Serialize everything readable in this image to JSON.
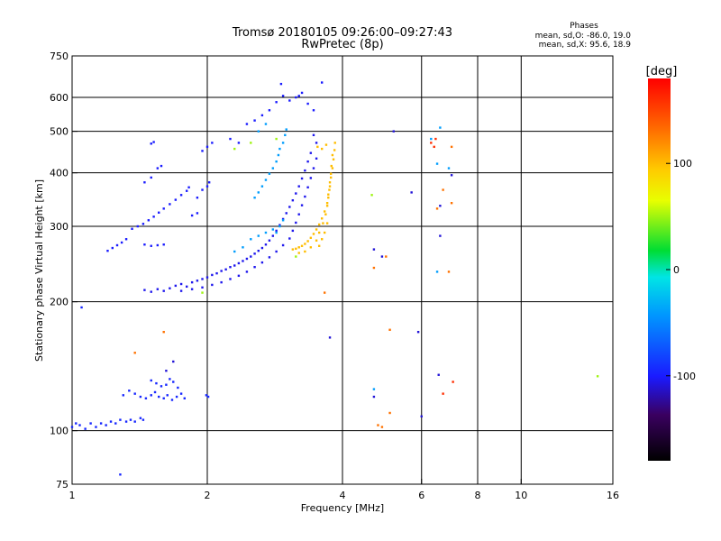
{
  "chart_data": {
    "type": "scatter",
    "title": "Tromsø 20180105 09:26:00–09:27:43",
    "subtitle": "RwPretec (8p)",
    "xlabel": "Frequency [MHz]",
    "ylabel": "Stationary phase Virtual Height [km]",
    "xscale": "log",
    "yscale": "log",
    "xlim": [
      1,
      16
    ],
    "ylim": [
      75,
      750
    ],
    "x_ticks": [
      1,
      2,
      4,
      6,
      8,
      10,
      16
    ],
    "y_ticks": [
      75,
      100,
      200,
      300,
      400,
      500,
      600,
      750
    ],
    "x_gridlines": [
      2,
      4,
      6,
      8,
      10
    ],
    "y_gridlines": [
      100,
      200,
      300,
      400,
      500,
      600
    ],
    "phases_box": {
      "heading": "Phases",
      "line1": "mean, sd,O: -86.0, 19.0",
      "line2": "mean, sd,X:  95.6, 18.9"
    },
    "colorbar": {
      "label": "[deg]",
      "range": [
        -180,
        180
      ],
      "ticks": [
        100,
        0,
        -100
      ],
      "tick_labels": [
        "100",
        "0",
        "-100"
      ]
    },
    "series": [
      {
        "name": "O-mode low (blue)",
        "phase": -95,
        "points": [
          [
            1.0,
            102
          ],
          [
            1.02,
            104
          ],
          [
            1.04,
            103
          ],
          [
            1.07,
            101
          ],
          [
            1.1,
            104
          ],
          [
            1.13,
            102
          ],
          [
            1.16,
            104
          ],
          [
            1.19,
            103
          ],
          [
            1.22,
            105
          ],
          [
            1.25,
            104
          ],
          [
            1.28,
            106
          ],
          [
            1.32,
            105
          ],
          [
            1.35,
            106
          ],
          [
            1.38,
            105
          ],
          [
            1.42,
            107
          ],
          [
            1.44,
            106
          ],
          [
            1.3,
            121
          ],
          [
            1.34,
            124
          ],
          [
            1.38,
            122
          ],
          [
            1.42,
            120
          ],
          [
            1.46,
            119
          ],
          [
            1.5,
            121
          ],
          [
            1.53,
            123
          ],
          [
            1.56,
            120
          ],
          [
            1.6,
            119
          ],
          [
            1.63,
            121
          ],
          [
            1.67,
            118
          ],
          [
            1.71,
            120
          ],
          [
            1.75,
            122
          ],
          [
            1.78,
            119
          ],
          [
            1.5,
            131
          ],
          [
            1.54,
            129
          ],
          [
            1.58,
            127
          ],
          [
            1.62,
            128
          ],
          [
            1.65,
            132
          ],
          [
            1.68,
            130
          ],
          [
            1.72,
            126
          ],
          [
            1.99,
            121
          ],
          [
            2.01,
            120
          ],
          [
            1.05,
            194
          ],
          [
            1.28,
            79
          ]
        ]
      },
      {
        "name": "O-mode trace (blue)",
        "phase": -105,
        "points": [
          [
            1.45,
            213
          ],
          [
            1.5,
            211
          ],
          [
            1.55,
            214
          ],
          [
            1.6,
            212
          ],
          [
            1.65,
            215
          ],
          [
            1.7,
            218
          ],
          [
            1.75,
            220
          ],
          [
            1.8,
            217
          ],
          [
            1.85,
            222
          ],
          [
            1.9,
            224
          ],
          [
            1.95,
            226
          ],
          [
            2.0,
            228
          ],
          [
            2.05,
            231
          ],
          [
            2.1,
            233
          ],
          [
            2.15,
            236
          ],
          [
            2.2,
            238
          ],
          [
            2.25,
            241
          ],
          [
            2.3,
            243
          ],
          [
            2.35,
            246
          ],
          [
            2.4,
            249
          ],
          [
            2.45,
            252
          ],
          [
            2.5,
            255
          ],
          [
            2.55,
            259
          ],
          [
            2.6,
            263
          ],
          [
            2.65,
            267
          ],
          [
            2.7,
            272
          ],
          [
            2.75,
            278
          ],
          [
            2.8,
            285
          ],
          [
            2.85,
            293
          ],
          [
            2.9,
            302
          ],
          [
            2.95,
            312
          ],
          [
            3.0,
            322
          ],
          [
            3.05,
            333
          ],
          [
            3.1,
            345
          ],
          [
            3.15,
            358
          ],
          [
            3.2,
            372
          ],
          [
            3.25,
            388
          ],
          [
            3.3,
            405
          ],
          [
            3.35,
            425
          ],
          [
            3.4,
            445
          ],
          [
            1.75,
            212
          ],
          [
            1.85,
            214
          ],
          [
            1.95,
            216
          ],
          [
            2.05,
            219
          ],
          [
            2.15,
            222
          ],
          [
            2.25,
            226
          ],
          [
            2.35,
            230
          ],
          [
            2.45,
            235
          ],
          [
            2.55,
            241
          ],
          [
            2.65,
            247
          ],
          [
            2.75,
            254
          ],
          [
            2.85,
            262
          ],
          [
            2.95,
            271
          ],
          [
            3.05,
            281
          ],
          [
            3.1,
            293
          ],
          [
            3.15,
            306
          ],
          [
            3.2,
            320
          ],
          [
            3.25,
            336
          ],
          [
            3.3,
            352
          ],
          [
            3.35,
            370
          ],
          [
            3.4,
            389
          ],
          [
            3.45,
            410
          ],
          [
            3.5,
            432
          ],
          [
            3.5,
            470
          ],
          [
            3.45,
            490
          ]
        ]
      },
      {
        "name": "Upper scattered (blue)",
        "phase": -100,
        "points": [
          [
            1.2,
            263
          ],
          [
            1.23,
            267
          ],
          [
            1.26,
            271
          ],
          [
            1.29,
            275
          ],
          [
            1.32,
            280
          ],
          [
            1.36,
            296
          ],
          [
            1.4,
            300
          ],
          [
            1.44,
            304
          ],
          [
            1.48,
            310
          ],
          [
            1.52,
            316
          ],
          [
            1.56,
            323
          ],
          [
            1.6,
            330
          ],
          [
            1.65,
            338
          ],
          [
            1.7,
            346
          ],
          [
            1.75,
            355
          ],
          [
            1.8,
            363
          ],
          [
            1.45,
            272
          ],
          [
            1.5,
            270
          ],
          [
            1.55,
            271
          ],
          [
            1.6,
            272
          ],
          [
            1.45,
            380
          ],
          [
            1.5,
            390
          ],
          [
            1.55,
            410
          ],
          [
            1.58,
            415
          ],
          [
            1.5,
            468
          ],
          [
            1.52,
            472
          ],
          [
            1.9,
            350
          ],
          [
            1.95,
            365
          ],
          [
            2.0,
            372
          ],
          [
            1.82,
            370
          ],
          [
            1.95,
            450
          ],
          [
            2.0,
            460
          ],
          [
            2.05,
            470
          ],
          [
            2.02,
            380
          ],
          [
            2.25,
            480
          ],
          [
            2.35,
            470
          ],
          [
            2.45,
            520
          ],
          [
            2.55,
            530
          ],
          [
            2.65,
            545
          ],
          [
            2.75,
            560
          ],
          [
            2.85,
            585
          ],
          [
            2.95,
            605
          ],
          [
            3.05,
            590
          ],
          [
            3.15,
            600
          ],
          [
            3.25,
            615
          ],
          [
            3.35,
            580
          ],
          [
            3.45,
            560
          ],
          [
            3.6,
            650
          ],
          [
            2.92,
            645
          ],
          [
            3.2,
            605
          ],
          [
            1.85,
            318
          ],
          [
            1.9,
            322
          ]
        ]
      },
      {
        "name": "Cyan points",
        "phase": -40,
        "points": [
          [
            2.55,
            350
          ],
          [
            2.6,
            360
          ],
          [
            2.65,
            372
          ],
          [
            2.7,
            385
          ],
          [
            2.75,
            398
          ],
          [
            2.8,
            410
          ],
          [
            2.85,
            425
          ],
          [
            2.88,
            440
          ],
          [
            2.9,
            455
          ],
          [
            2.95,
            470
          ],
          [
            2.98,
            490
          ],
          [
            3.0,
            505
          ],
          [
            2.85,
            290
          ],
          [
            2.9,
            300
          ],
          [
            2.95,
            310
          ],
          [
            2.5,
            280
          ],
          [
            2.6,
            285
          ],
          [
            2.7,
            290
          ],
          [
            2.8,
            295
          ],
          [
            2.4,
            268
          ],
          [
            2.3,
            262
          ],
          [
            2.6,
            500
          ],
          [
            2.7,
            520
          ],
          [
            6.5,
            235
          ],
          [
            6.3,
            480
          ],
          [
            6.6,
            510
          ],
          [
            6.5,
            420
          ],
          [
            6.9,
            410
          ],
          [
            4.7,
            125
          ]
        ]
      },
      {
        "name": "X-mode trace (yellow/orange)",
        "phase": 100,
        "points": [
          [
            3.1,
            265
          ],
          [
            3.15,
            266
          ],
          [
            3.2,
            268
          ],
          [
            3.25,
            270
          ],
          [
            3.3,
            273
          ],
          [
            3.35,
            277
          ],
          [
            3.4,
            282
          ],
          [
            3.45,
            288
          ],
          [
            3.5,
            295
          ],
          [
            3.55,
            303
          ],
          [
            3.6,
            313
          ],
          [
            3.65,
            325
          ],
          [
            3.7,
            340
          ],
          [
            3.72,
            356
          ],
          [
            3.75,
            372
          ],
          [
            3.77,
            390
          ],
          [
            3.8,
            410
          ],
          [
            3.82,
            430
          ],
          [
            3.84,
            452
          ],
          [
            3.85,
            470
          ],
          [
            3.2,
            260
          ],
          [
            3.3,
            262
          ],
          [
            3.4,
            268
          ],
          [
            3.5,
            278
          ],
          [
            3.55,
            290
          ],
          [
            3.62,
            305
          ],
          [
            3.67,
            320
          ],
          [
            3.7,
            335
          ],
          [
            3.72,
            350
          ],
          [
            3.74,
            365
          ],
          [
            3.75,
            380
          ],
          [
            3.77,
            398
          ],
          [
            3.78,
            415
          ],
          [
            3.8,
            440
          ],
          [
            3.6,
            280
          ],
          [
            3.65,
            290
          ],
          [
            3.7,
            305
          ],
          [
            3.55,
            270
          ],
          [
            3.52,
            460
          ],
          [
            3.6,
            455
          ],
          [
            3.68,
            465
          ]
        ]
      },
      {
        "name": "X-mode extra (orange/yellow)",
        "phase": 130,
        "points": [
          [
            3.65,
            210
          ],
          [
            1.6,
            170
          ],
          [
            1.38,
            152
          ],
          [
            4.8,
            103
          ],
          [
            4.9,
            102
          ],
          [
            5.1,
            110
          ],
          [
            5.1,
            172
          ],
          [
            4.7,
            240
          ],
          [
            5.0,
            255
          ],
          [
            6.9,
            235
          ],
          [
            7.0,
            340
          ],
          [
            6.7,
            365
          ],
          [
            7.0,
            460
          ],
          [
            6.5,
            330
          ]
        ]
      },
      {
        "name": "Reddish points",
        "phase": 160,
        "points": [
          [
            6.4,
            460
          ],
          [
            6.45,
            480
          ],
          [
            6.3,
            470
          ],
          [
            7.05,
            130
          ],
          [
            6.7,
            122
          ]
        ]
      },
      {
        "name": "Green points",
        "phase": 50,
        "points": [
          [
            2.5,
            470
          ],
          [
            2.3,
            455
          ],
          [
            2.85,
            480
          ],
          [
            3.15,
            255
          ],
          [
            4.65,
            355
          ],
          [
            14.8,
            134
          ],
          [
            1.95,
            210
          ]
        ]
      },
      {
        "name": "Deep blue isolated",
        "phase": -110,
        "points": [
          [
            3.75,
            165
          ],
          [
            6.6,
            335
          ],
          [
            6.6,
            285
          ],
          [
            6.55,
            135
          ],
          [
            6.0,
            108
          ],
          [
            4.7,
            265
          ],
          [
            4.9,
            255
          ],
          [
            5.7,
            360
          ],
          [
            5.2,
            500
          ],
          [
            5.9,
            170
          ],
          [
            7.0,
            395
          ],
          [
            4.7,
            120
          ],
          [
            1.68,
            145
          ],
          [
            1.62,
            138
          ]
        ]
      }
    ]
  }
}
